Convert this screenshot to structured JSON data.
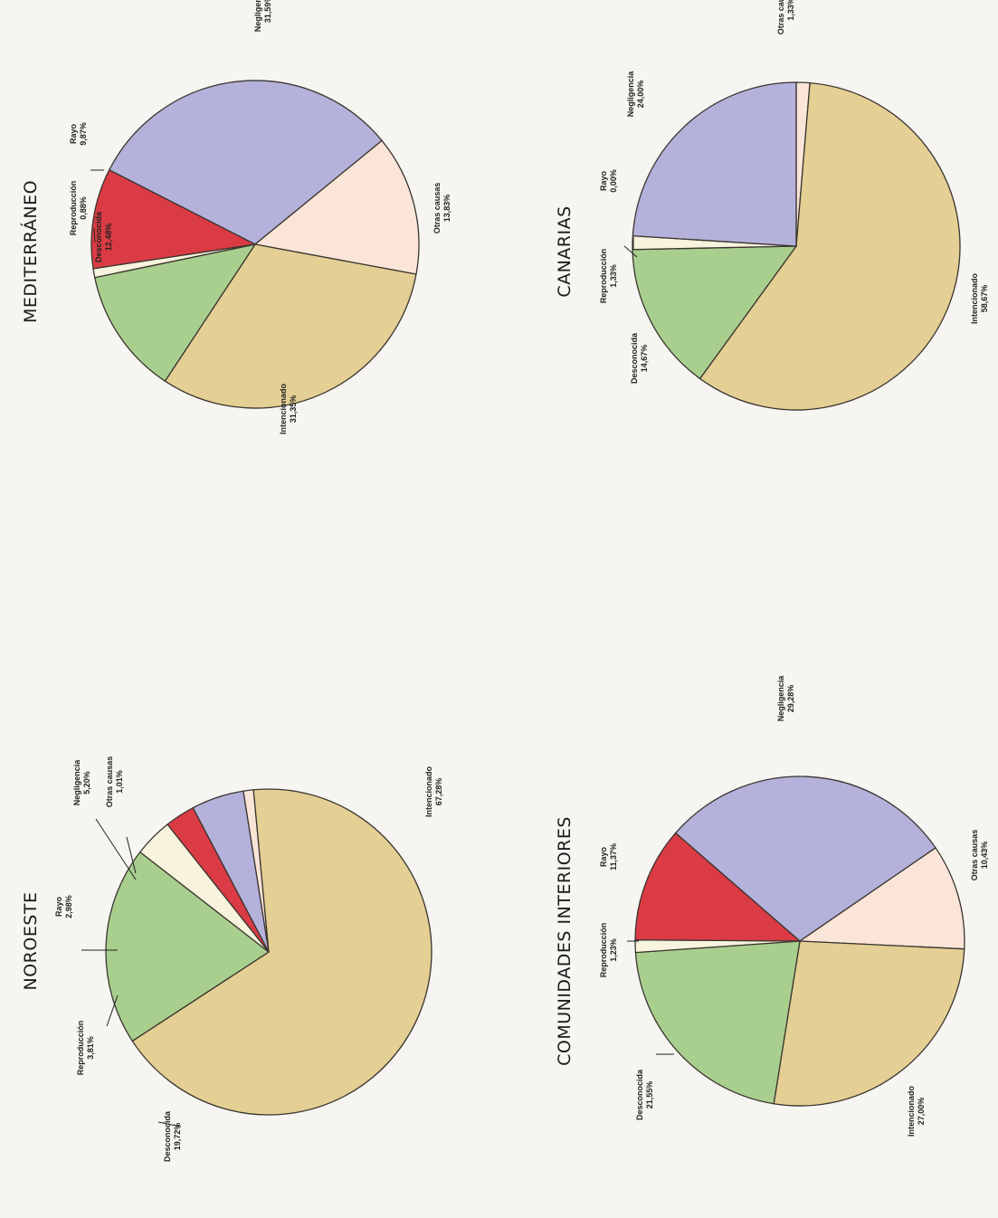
{
  "colors": {
    "Intencionado": "#e4cf94",
    "Negligencia": "#b4b1db",
    "Rayo": "#db3b44",
    "Reproducción": "#f7f3dc",
    "Desconocida": "#a9cf8e",
    "Otras causas": "#fbe5d8",
    "outline": "#3a3530"
  },
  "chart_data": [
    {
      "type": "pie",
      "title": "MEDITERRÁNEO",
      "slices": [
        {
          "label": "Negligencia",
          "value": 31.59,
          "value_text": "31,59%"
        },
        {
          "label": "Otras causas",
          "value": 13.83,
          "value_text": "13,83%"
        },
        {
          "label": "Intencionado",
          "value": 31.35,
          "value_text": "31,35%"
        },
        {
          "label": "Desconocida",
          "value": 12.48,
          "value_text": "12,48%"
        },
        {
          "label": "Reproducción",
          "value": 0.88,
          "value_text": "0,88%"
        },
        {
          "label": "Rayo",
          "value": 9.87,
          "value_text": "9,87%"
        }
      ]
    },
    {
      "type": "pie",
      "title": "CANARIAS",
      "slices": [
        {
          "label": "Otras causas",
          "value": 1.33,
          "value_text": "1,33%"
        },
        {
          "label": "Intencionado",
          "value": 58.67,
          "value_text": "58,67%"
        },
        {
          "label": "Desconocida",
          "value": 14.67,
          "value_text": "14,67%"
        },
        {
          "label": "Reproducción",
          "value": 1.33,
          "value_text": "1,33%"
        },
        {
          "label": "Rayo",
          "value": 0.0,
          "value_text": "0,00%"
        },
        {
          "label": "Negligencia",
          "value": 24.0,
          "value_text": "24,00%"
        }
      ]
    },
    {
      "type": "pie",
      "title": "NOROESTE",
      "slices": [
        {
          "label": "Otras causas",
          "value": 1.01,
          "value_text": "1,01%"
        },
        {
          "label": "Intencionado",
          "value": 67.28,
          "value_text": "67,28%"
        },
        {
          "label": "Desconocida",
          "value": 19.72,
          "value_text": "19,72%"
        },
        {
          "label": "Reproducción",
          "value": 3.81,
          "value_text": "3,81%"
        },
        {
          "label": "Rayo",
          "value": 2.98,
          "value_text": "2,98%"
        },
        {
          "label": "Negligencia",
          "value": 5.2,
          "value_text": "5,20%"
        }
      ]
    },
    {
      "type": "pie",
      "title": "COMUNIDADES INTERIORES",
      "slices": [
        {
          "label": "Negligencia",
          "value": 29.28,
          "value_text": "29,28%"
        },
        {
          "label": "Otras causas",
          "value": 10.43,
          "value_text": "10,43%"
        },
        {
          "label": "Intencionado",
          "value": 27.0,
          "value_text": "27,00%"
        },
        {
          "label": "Desconocida",
          "value": 21.55,
          "value_text": "21,55%"
        },
        {
          "label": "Reproducción",
          "value": 1.23,
          "value_text": "1,23%"
        },
        {
          "label": "Rayo",
          "value": 11.37,
          "value_text": "11,37%"
        }
      ]
    }
  ]
}
